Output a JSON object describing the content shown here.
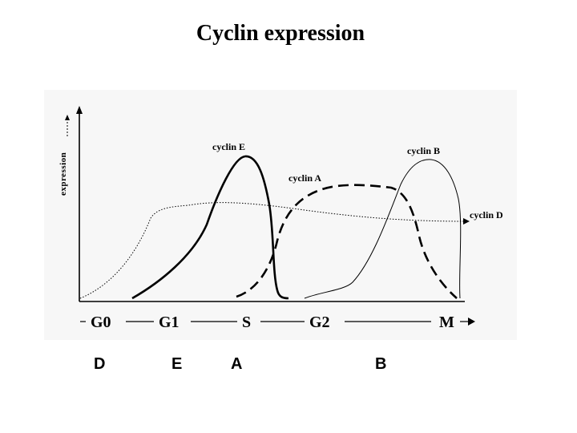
{
  "title": "Cyclin expression",
  "diagram": {
    "y_axis_label": "expression",
    "phases": [
      "G0",
      "G1",
      "S",
      "G2",
      "M"
    ],
    "curves": [
      {
        "label": "cyclin D",
        "style": "dotted"
      },
      {
        "label": "cyclin E",
        "style": "thick-solid"
      },
      {
        "label": "cyclin A",
        "style": "thick-dashed"
      },
      {
        "label": "cyclin B",
        "style": "thin-solid"
      }
    ],
    "letters": [
      "D",
      "E",
      "A",
      "B"
    ]
  }
}
